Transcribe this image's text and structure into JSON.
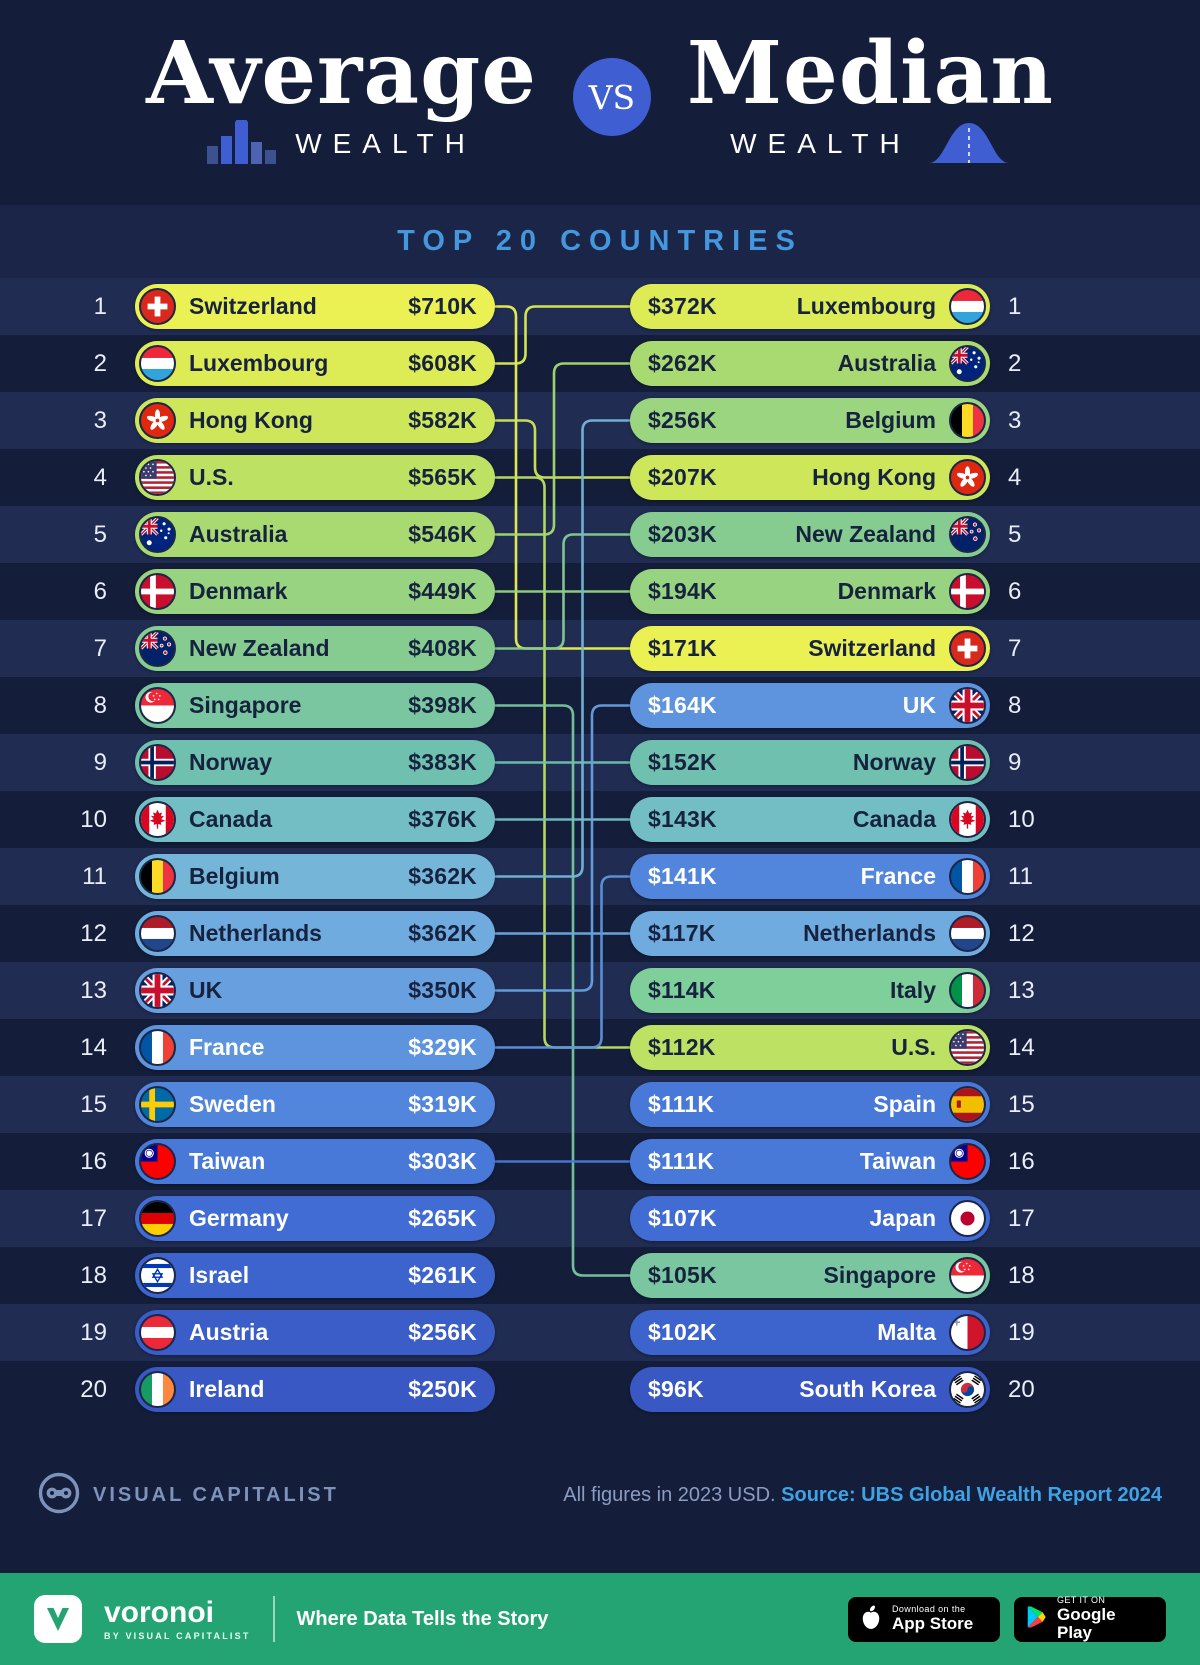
{
  "header": {
    "title_left": "Average",
    "wealth_left": "WEALTH",
    "vs_label": "VS",
    "title_right": "Median",
    "wealth_right": "WEALTH"
  },
  "section": {
    "title": "TOP 20 COUNTRIES"
  },
  "footer": {
    "brand": "VISUAL CAPITALIST",
    "note": "All figures in 2023 USD.",
    "source": "Source: UBS Global Wealth Report 2024"
  },
  "bottom_bar": {
    "brand": "voronoi",
    "brand_sub": "BY VISUAL CAPITALIST",
    "tagline": "Where Data Tells the Story",
    "appstore_top": "Download on the",
    "appstore_bottom": "App Store",
    "gplay_top": "GET IT ON",
    "gplay_bottom": "Google Play"
  },
  "colors": {
    "background": "#141e3a",
    "row_stripe": "#202c52",
    "accent_blue": "#4496dd",
    "vs_circle": "#3e5ed2",
    "green_bar": "#23a472",
    "pill_text_dark": "#17223f",
    "pill_text_light": "#ffffff"
  },
  "chart_data": {
    "type": "table",
    "title": "Average vs Median Wealth — Top 20 Countries",
    "units": "2023 USD, thousands",
    "average_wealth": [
      {
        "rank": 1,
        "country": "Switzerland",
        "label": "$710K",
        "value_k": 710,
        "flag": "ch",
        "color": "#ecf153",
        "text": "dark"
      },
      {
        "rank": 2,
        "country": "Luxembourg",
        "label": "$608K",
        "value_k": 608,
        "flag": "lu",
        "color": "#ddec55",
        "text": "dark"
      },
      {
        "rank": 3,
        "country": "Hong Kong",
        "label": "$582K",
        "value_k": 582,
        "flag": "hk",
        "color": "#cee75a",
        "text": "dark"
      },
      {
        "rank": 4,
        "country": "U.S.",
        "label": "$565K",
        "value_k": 565,
        "flag": "us",
        "color": "#bce163",
        "text": "dark"
      },
      {
        "rank": 5,
        "country": "Australia",
        "label": "$546K",
        "value_k": 546,
        "flag": "au",
        "color": "#a8da71",
        "text": "dark"
      },
      {
        "rank": 6,
        "country": "Denmark",
        "label": "$449K",
        "value_k": 449,
        "flag": "dk",
        "color": "#97d380",
        "text": "dark"
      },
      {
        "rank": 7,
        "country": "New Zealand",
        "label": "$408K",
        "value_k": 408,
        "flag": "nz",
        "color": "#86cc90",
        "text": "dark"
      },
      {
        "rank": 8,
        "country": "Singapore",
        "label": "$398K",
        "value_k": 398,
        "flag": "sg",
        "color": "#79c6a0",
        "text": "dark"
      },
      {
        "rank": 9,
        "country": "Norway",
        "label": "$383K",
        "value_k": 383,
        "flag": "no",
        "color": "#6fc0af",
        "text": "dark"
      },
      {
        "rank": 10,
        "country": "Canada",
        "label": "$376K",
        "value_k": 376,
        "flag": "ca",
        "color": "#73bec5",
        "text": "dark"
      },
      {
        "rank": 11,
        "country": "Belgium",
        "label": "$362K",
        "value_k": 362,
        "flag": "be",
        "color": "#75b6d8",
        "text": "dark"
      },
      {
        "rank": 12,
        "country": "Netherlands",
        "label": "$362K",
        "value_k": 362,
        "flag": "nl",
        "color": "#6fabde",
        "text": "dark"
      },
      {
        "rank": 13,
        "country": "UK",
        "label": "$350K",
        "value_k": 350,
        "flag": "gb",
        "color": "#68a0df",
        "text": "dark"
      },
      {
        "rank": 14,
        "country": "France",
        "label": "$329K",
        "value_k": 329,
        "flag": "fr",
        "color": "#5e93de",
        "text": "light"
      },
      {
        "rank": 15,
        "country": "Sweden",
        "label": "$319K",
        "value_k": 319,
        "flag": "se",
        "color": "#5285dc",
        "text": "light"
      },
      {
        "rank": 16,
        "country": "Taiwan",
        "label": "$303K",
        "value_k": 303,
        "flag": "tw",
        "color": "#4979d8",
        "text": "light"
      },
      {
        "rank": 17,
        "country": "Germany",
        "label": "$265K",
        "value_k": 265,
        "flag": "de",
        "color": "#416cd3",
        "text": "light"
      },
      {
        "rank": 18,
        "country": "Israel",
        "label": "$261K",
        "value_k": 261,
        "flag": "il",
        "color": "#3d63cd",
        "text": "light"
      },
      {
        "rank": 19,
        "country": "Austria",
        "label": "$256K",
        "value_k": 256,
        "flag": "at",
        "color": "#3a5dc8",
        "text": "light"
      },
      {
        "rank": 20,
        "country": "Ireland",
        "label": "$250K",
        "value_k": 250,
        "flag": "ie",
        "color": "#3a58c3",
        "text": "light"
      }
    ],
    "median_wealth": [
      {
        "rank": 1,
        "country": "Luxembourg",
        "label": "$372K",
        "value_k": 372,
        "flag": "lu",
        "color": "#ddec55",
        "text": "dark"
      },
      {
        "rank": 2,
        "country": "Australia",
        "label": "$262K",
        "value_k": 262,
        "flag": "au",
        "color": "#a8da71",
        "text": "dark"
      },
      {
        "rank": 3,
        "country": "Belgium",
        "label": "$256K",
        "value_k": 256,
        "flag": "be",
        "color": "#9bd57f",
        "text": "dark"
      },
      {
        "rank": 4,
        "country": "Hong Kong",
        "label": "$207K",
        "value_k": 207,
        "flag": "hk",
        "color": "#cee75a",
        "text": "dark"
      },
      {
        "rank": 5,
        "country": "New Zealand",
        "label": "$203K",
        "value_k": 203,
        "flag": "nz",
        "color": "#86cc90",
        "text": "dark"
      },
      {
        "rank": 6,
        "country": "Denmark",
        "label": "$194K",
        "value_k": 194,
        "flag": "dk",
        "color": "#97d380",
        "text": "dark"
      },
      {
        "rank": 7,
        "country": "Switzerland",
        "label": "$171K",
        "value_k": 171,
        "flag": "ch",
        "color": "#ecf153",
        "text": "dark"
      },
      {
        "rank": 8,
        "country": "UK",
        "label": "$164K",
        "value_k": 164,
        "flag": "gb",
        "color": "#5e93de",
        "text": "light"
      },
      {
        "rank": 9,
        "country": "Norway",
        "label": "$152K",
        "value_k": 152,
        "flag": "no",
        "color": "#6fc0af",
        "text": "dark"
      },
      {
        "rank": 10,
        "country": "Canada",
        "label": "$143K",
        "value_k": 143,
        "flag": "ca",
        "color": "#73bec5",
        "text": "dark"
      },
      {
        "rank": 11,
        "country": "France",
        "label": "$141K",
        "value_k": 141,
        "flag": "fr",
        "color": "#5285dc",
        "text": "light"
      },
      {
        "rank": 12,
        "country": "Netherlands",
        "label": "$117K",
        "value_k": 117,
        "flag": "nl",
        "color": "#6fabde",
        "text": "dark"
      },
      {
        "rank": 13,
        "country": "Italy",
        "label": "$114K",
        "value_k": 114,
        "flag": "it",
        "color": "#7ecf9a",
        "text": "dark"
      },
      {
        "rank": 14,
        "country": "U.S.",
        "label": "$112K",
        "value_k": 112,
        "flag": "us",
        "color": "#bce163",
        "text": "dark"
      },
      {
        "rank": 15,
        "country": "Spain",
        "label": "$111K",
        "value_k": 111,
        "flag": "es",
        "color": "#4979d8",
        "text": "light"
      },
      {
        "rank": 16,
        "country": "Taiwan",
        "label": "$111K",
        "value_k": 111,
        "flag": "tw",
        "color": "#4979d8",
        "text": "light"
      },
      {
        "rank": 17,
        "country": "Japan",
        "label": "$107K",
        "value_k": 107,
        "flag": "jp",
        "color": "#416cd3",
        "text": "light"
      },
      {
        "rank": 18,
        "country": "Singapore",
        "label": "$105K",
        "value_k": 105,
        "flag": "sg",
        "color": "#79c6a0",
        "text": "dark"
      },
      {
        "rank": 19,
        "country": "Malta",
        "label": "$102K",
        "value_k": 102,
        "flag": "mt",
        "color": "#3d63cd",
        "text": "light"
      },
      {
        "rank": 20,
        "country": "South Korea",
        "label": "$96K",
        "value_k": 96,
        "flag": "kr",
        "color": "#3a58c3",
        "text": "light"
      }
    ]
  }
}
